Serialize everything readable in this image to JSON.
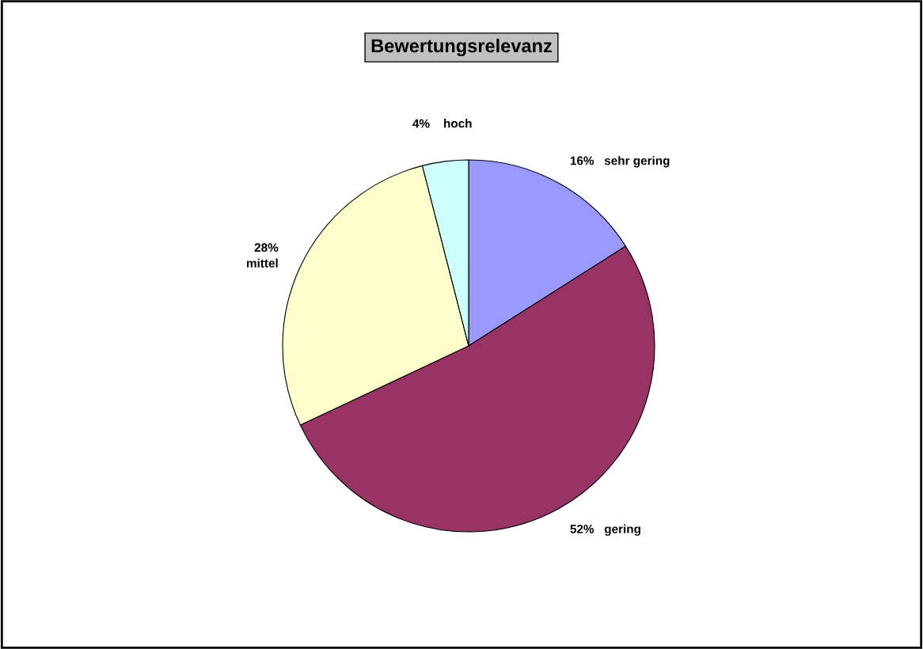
{
  "chart_data": {
    "type": "pie",
    "title": "Bewertungsrelevanz",
    "categories": [
      "sehr gering",
      "gering",
      "mittel",
      "hoch"
    ],
    "values": [
      16,
      52,
      28,
      4
    ],
    "value_labels": [
      "16%",
      "52%",
      "28%",
      "4%"
    ],
    "colors": [
      "#9999ff",
      "#993366",
      "#ffffcc",
      "#ccffff"
    ],
    "legend": false
  }
}
